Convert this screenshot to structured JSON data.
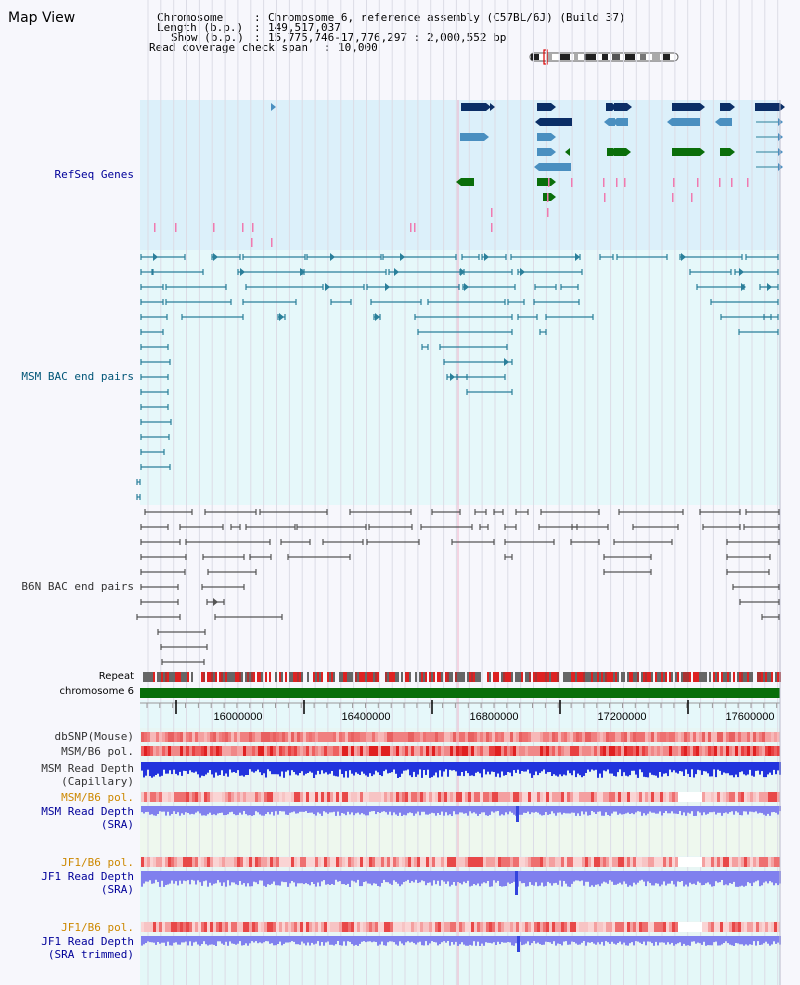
{
  "page": {
    "title": "Map View"
  },
  "header": {
    "chromosome_label": "Chromosome",
    "chromosome_value": "Chromosome 6, reference assembly (C57BL/6J) (Build 37)",
    "length_label": "Length (b.p.)",
    "length_value": "149,517,037",
    "show_label": "Show (b.p.)",
    "show_value": "15,775,746-17,776,297 : 2,000,552 bp",
    "coverage_label": "Read coverage check span",
    "coverage_value": "10,000"
  },
  "tracks": {
    "refseq": "RefSeq Genes",
    "msm_bac": "MSM BAC end pairs",
    "b6n_bac": "B6N BAC end pairs",
    "repeat": "Repeat",
    "chromosome": "chromosome 6",
    "dbsnp": "dbSNP(Mouse)",
    "msm_b6_pol": "MSM/B6 pol.",
    "msm_depth_cap_1": "MSM Read Depth",
    "msm_depth_cap_2": "(Capillary)",
    "msm_b6_pol_sra": "MSM/B6 pol.",
    "msm_depth_sra_1": "MSM Read Depth",
    "msm_depth_sra_2": "(SRA)",
    "jf1_b6_pol": "JF1/B6 pol.",
    "jf1_depth_sra_1": "JF1 Read Depth",
    "jf1_depth_sra_2": "(SRA)",
    "jf1_b6_pol_trim": "JF1/B6 pol.",
    "jf1_depth_trim_1": "JF1 Read Depth",
    "jf1_depth_trim_2": "(SRA trimmed)"
  },
  "axis": {
    "tick_labels": [
      "16000000",
      "16400000",
      "16800000",
      "17200000",
      "17600000"
    ]
  },
  "colors": {
    "label_blue": "#000099",
    "label_msm": "#005577",
    "label_b6n": "#333333",
    "label_orange": "#cc8800",
    "refseq_bg": "#dcf0fa",
    "msm_bg": "#e6f8fa",
    "gene_dark": "#0b2e66",
    "gene_mid": "#4a8fc0",
    "gene_green": "#0a6e0a",
    "bac_teal": "#2a7f9a",
    "bac_gray": "#555555",
    "chromosome_green": "#0a6e0a",
    "depth_blue": "#2233dd",
    "depth_lavender": "#8080ee"
  }
}
